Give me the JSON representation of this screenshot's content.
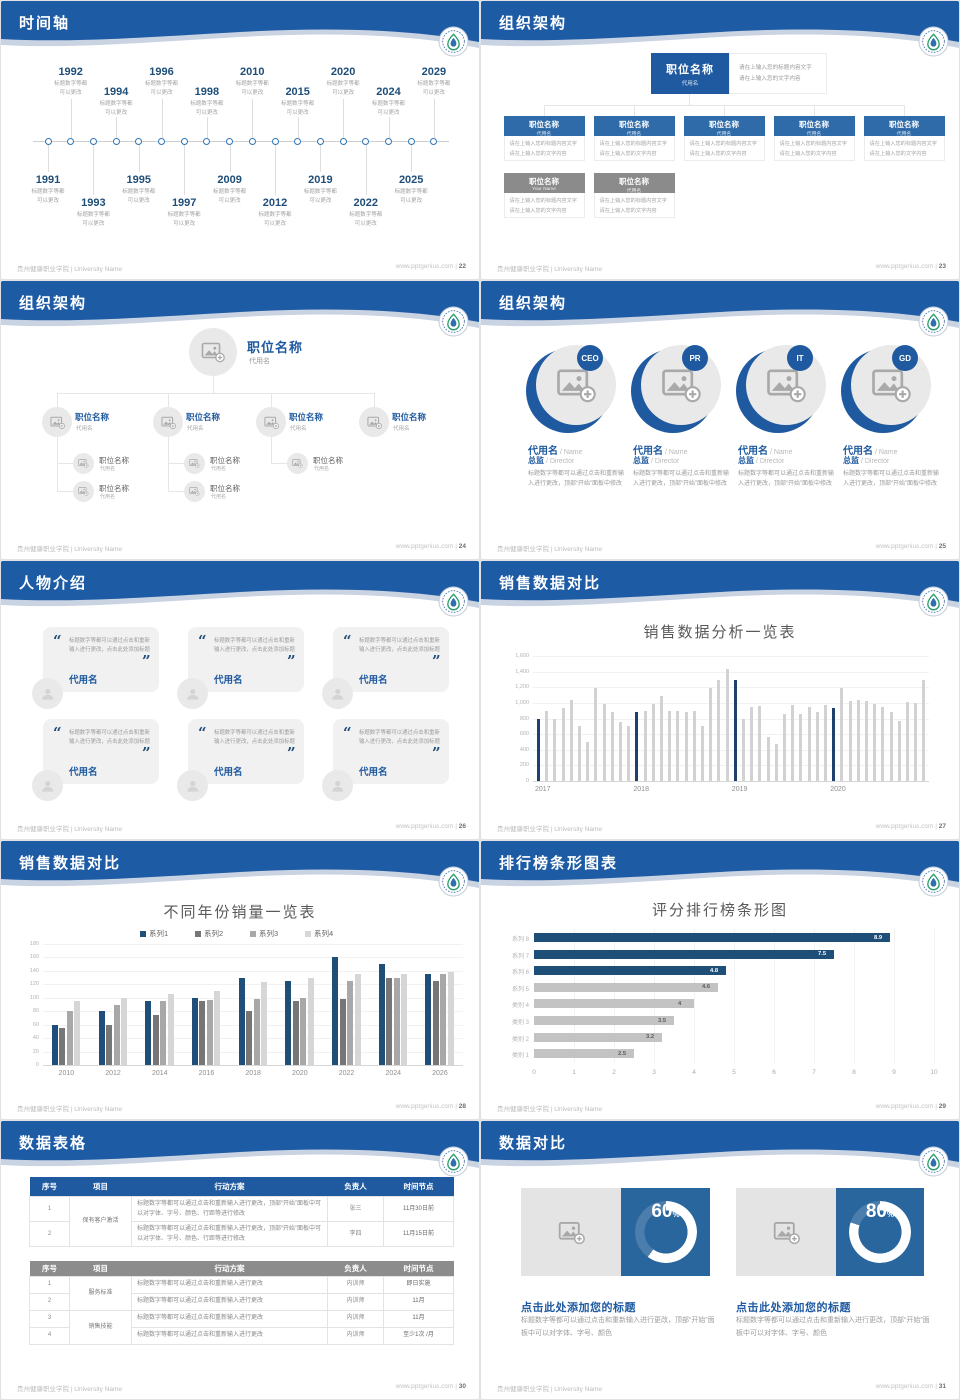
{
  "footer": {
    "org": "贵州健康职业学院 | University Name",
    "site": "www.pptgenius.com"
  },
  "colors": {
    "band_blue": "#1d5ba4",
    "box_blue": "#2e6ba8",
    "dark_blue": "#1f5aa0",
    "navy_bar": "#1f3f6e",
    "gray_bar": "#d2d2d2",
    "gray_head": "#8b8b8b",
    "donut_blue": "#2a669e"
  },
  "placeholder": {
    "title_block": "职位名称",
    "alias": "代用名",
    "your_name": "Your Name",
    "input_line1": "请在上输入您的标题内容文字",
    "input_line2": "请在上输入您的文字内容"
  },
  "slides": [
    {
      "title": "时间轴",
      "page": "22",
      "caption": "标题数字等都\n可以更改",
      "items": [
        {
          "year": "1991",
          "side": "down",
          "level": 1
        },
        {
          "year": "1992",
          "side": "up",
          "level": 1
        },
        {
          "year": "1993",
          "side": "down",
          "level": 2
        },
        {
          "year": "1994",
          "side": "up",
          "level": 2
        },
        {
          "year": "1995",
          "side": "down",
          "level": 1
        },
        {
          "year": "1996",
          "side": "up",
          "level": 1
        },
        {
          "year": "1997",
          "side": "down",
          "level": 2
        },
        {
          "year": "1998",
          "side": "up",
          "level": 2
        },
        {
          "year": "2009",
          "side": "down",
          "level": 1
        },
        {
          "year": "2010",
          "side": "up",
          "level": 1
        },
        {
          "year": "2012",
          "side": "down",
          "level": 2
        },
        {
          "year": "2015",
          "side": "up",
          "level": 2
        },
        {
          "year": "2019",
          "side": "down",
          "level": 1
        },
        {
          "year": "2020",
          "side": "up",
          "level": 1
        },
        {
          "year": "2022",
          "side": "down",
          "level": 2
        },
        {
          "year": "2024",
          "side": "up",
          "level": 2
        },
        {
          "year": "2025",
          "side": "down",
          "level": 1
        },
        {
          "year": "2029",
          "side": "up",
          "level": 1
        }
      ]
    },
    {
      "title": "组织架构",
      "page": "23",
      "blue_boxes": 5,
      "gray_subs": [
        "Your Name",
        "代用名"
      ]
    },
    {
      "title": "组织架构",
      "page": "24",
      "columns": [
        {
          "subs": 2
        },
        {
          "subs": 2
        },
        {
          "subs": 1
        },
        {
          "subs": 0
        }
      ]
    },
    {
      "title": "组织架构",
      "page": "25",
      "name": "代用名",
      "name_en": "Name",
      "role": "总监",
      "role_en": "Director",
      "body": "标题数字等都可以通过点击和重新输入进行更改，顶部“开始”面板中修改",
      "members": [
        {
          "badge": "CEO"
        },
        {
          "badge": "PR"
        },
        {
          "badge": "IT"
        },
        {
          "badge": "GD"
        }
      ]
    },
    {
      "title": "人物介绍",
      "page": "26",
      "cards": [
        {
          "text": "标题数字等都可以通过点击和重新输入进行更改，点击此处添加标题",
          "name": "代用名"
        },
        {
          "text": "标题数字等都可以通过点击和重新输入进行更改，点击此处添加标题",
          "name": "代用名"
        },
        {
          "text": "标题数字等都可以通过点击和重新输入进行更改，点击此处添加标题",
          "name": "代用名"
        },
        {
          "text": "标题数字等都可以通过点击和重新输入进行更改，点击此处添加标题",
          "name": "代用名"
        },
        {
          "text": "标题数字等都可以通过点击和重新输入进行更改，点击此处添加标题",
          "name": "代用名"
        },
        {
          "text": "标题数字等都可以通过点击和重新输入进行更改，点击此处添加标题",
          "name": "代用名"
        }
      ]
    },
    {
      "title": "销售数据对比",
      "page": "27"
    },
    {
      "title": "销售数据对比",
      "page": "28"
    },
    {
      "title": "排行榜条形图表",
      "page": "29"
    },
    {
      "title": "数据表格",
      "page": "30",
      "tables": [
        {
          "style": "blue",
          "headers": [
            "序号",
            "项目",
            "行动方案",
            "负责人",
            "时间节点"
          ],
          "rows": [
            [
              "1",
              {
                "t": "保有客户激活",
                "span": 2,
                "cls": "proj"
              },
              {
                "t": "标题数字等都可以通过点击和重新输入进行更改，顶部“开始”面板中可以对字体、字号、颜色、行距等进行修改",
                "cls": "al"
              },
              "张三",
              {
                "t": "11月30日前",
                "cls": "when"
              }
            ],
            [
              "2",
              {
                "t": "标题数字等都可以通过点击和重新输入进行更改，顶部“开始”面板中可以对字体、字号、颜色、行距等进行修改",
                "cls": "al"
              },
              "李四",
              {
                "t": "11月15日前",
                "cls": "when"
              }
            ]
          ]
        },
        {
          "style": "gray",
          "headers": [
            "序号",
            "项目",
            "行动方案",
            "负责人",
            "时间节点"
          ],
          "rows": [
            [
              "1",
              {
                "t": "服务标准",
                "span": 2,
                "cls": "proj"
              },
              {
                "t": "标题数字等都可以通过点击和重新输入进行更改",
                "cls": "al"
              },
              "内训师",
              {
                "t": "即日实施",
                "cls": "when"
              }
            ],
            [
              "2",
              {
                "t": "标题数字等都可以通过点击和重新输入进行更改",
                "cls": "al"
              },
              "内训师",
              {
                "t": "11月",
                "cls": "when"
              }
            ],
            [
              "3",
              {
                "t": "销售技能",
                "span": 2,
                "cls": "proj"
              },
              {
                "t": "标题数字等都可以通过点击和重新输入进行更改",
                "cls": "al"
              },
              "内训师",
              {
                "t": "11月",
                "cls": "when"
              }
            ],
            [
              "4",
              {
                "t": "标题数字等都可以通过点击和重新输入进行更改",
                "cls": "al"
              },
              "内训师",
              {
                "t": "至少1次 /月",
                "cls": "when"
              }
            ]
          ]
        }
      ]
    },
    {
      "title": "数据对比",
      "page": "31"
    }
  ],
  "chart_data": [
    {
      "type": "bar",
      "title": "销售数据分析一览表",
      "ylim": [
        0,
        1600
      ],
      "ystep": 200,
      "grid": true,
      "note": "first bar of each year group highlighted navy",
      "groups": [
        {
          "label": "2017",
          "values": [
            790,
            890,
            790,
            940,
            1040,
            700,
            500,
            1190,
            980,
            880,
            750,
            700
          ]
        },
        {
          "label": "2018",
          "values": [
            880,
            900,
            990,
            1090,
            900,
            900,
            880,
            900,
            700,
            1190,
            1290,
            1440
          ]
        },
        {
          "label": "2019",
          "values": [
            1290,
            800,
            950,
            960,
            560,
            480,
            860,
            970,
            860,
            950,
            880,
            970
          ]
        },
        {
          "label": "2020",
          "values": [
            940,
            1190,
            1030,
            1040,
            1030,
            980,
            950,
            880,
            770,
            1010,
            1000,
            1290
          ]
        }
      ]
    },
    {
      "type": "bar",
      "title": "不同年份销量一览表",
      "ylim": [
        0,
        180
      ],
      "ystep": 20,
      "grid": true,
      "legend_position": "top",
      "categories": [
        "2010",
        "2012",
        "2014",
        "2016",
        "2018",
        "2020",
        "2022",
        "2024",
        "2026"
      ],
      "series": [
        {
          "name": "系列1",
          "color": "#1f4e79",
          "values": [
            60,
            80,
            95,
            100,
            130,
            125,
            160,
            150,
            135
          ]
        },
        {
          "name": "系列2",
          "color": "#767676",
          "values": [
            55,
            60,
            75,
            95,
            80,
            95,
            98,
            130,
            125
          ]
        },
        {
          "name": "系列3",
          "color": "#a8a8a8",
          "values": [
            80,
            90,
            95,
            97,
            98,
            100,
            125,
            130,
            135
          ]
        },
        {
          "name": "系列4",
          "color": "#d6d6d6",
          "values": [
            95,
            100,
            105,
            110,
            123,
            130,
            135,
            135,
            138
          ]
        }
      ]
    },
    {
      "type": "bar-horizontal",
      "title": "评分排行榜条形图",
      "xlim": [
        0,
        10
      ],
      "xstep": 1,
      "grid": true,
      "categories": [
        "系列 8",
        "系列 7",
        "系列 6",
        "系列 5",
        "类别 4",
        "类别 3",
        "类别 2",
        "类别 1"
      ],
      "values": [
        8.9,
        7.5,
        4.8,
        4.6,
        4,
        3.5,
        3.2,
        2.5
      ],
      "blue_count": 3,
      "blue_color": "#1f4e79",
      "gray_color": "#c3c3c3"
    },
    {
      "type": "donut",
      "items": [
        {
          "percent": 60,
          "heading": "点击此处添加您的标题",
          "body": "标题数字等都可以通过点击和重新输入进行更改，顶部“开始”面板中可以对字体、字号、颜色"
        },
        {
          "percent": 80,
          "heading": "点击此处添加您的标题",
          "body": "标题数字等都可以通过点击和重新输入进行更改，顶部“开始”面板中可以对字体、字号、颜色"
        }
      ]
    }
  ]
}
